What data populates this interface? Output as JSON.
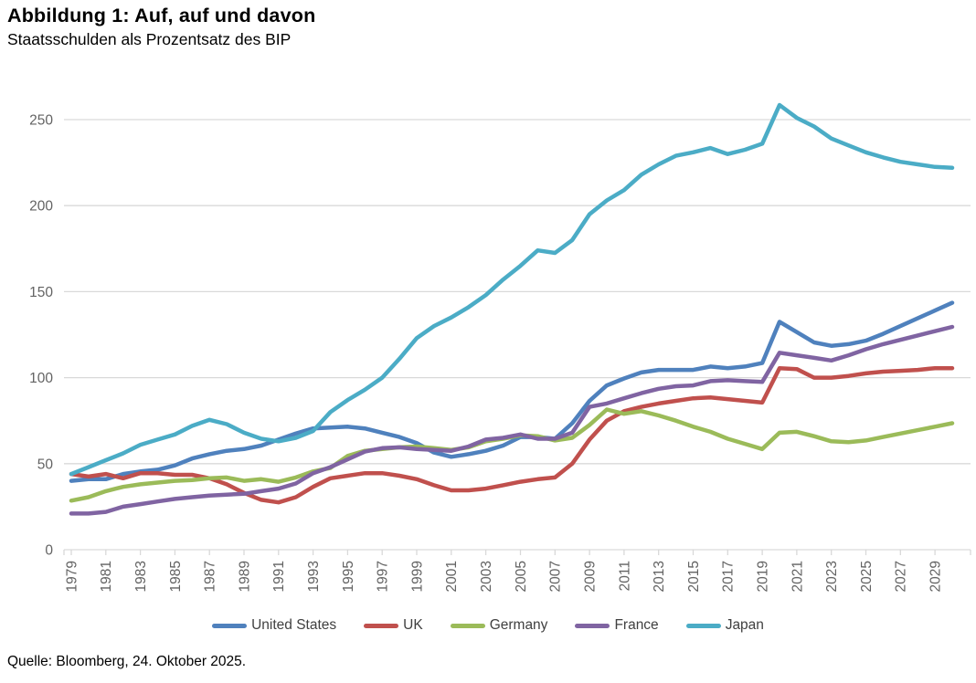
{
  "header": {
    "title": "Abbildung 1: Auf, auf und davon",
    "subtitle": "Staatsschulden als Prozentsatz des BIP"
  },
  "footer": {
    "source": "Quelle: Bloomberg, 24. Oktober 2025."
  },
  "colors": {
    "grid": "#d9d9d9",
    "axis_text": "#636363",
    "legend_text": "#404040",
    "us_blue": "#4F81BD",
    "uk_red": "#C0504D",
    "germany_green": "#9BBB59",
    "france_purple": "#8064A2",
    "japan_cyan": "#4BACC6"
  },
  "chart_data": {
    "type": "line",
    "title": "Abbildung 1: Auf, auf und davon",
    "subtitle": "Staatsschulden als Prozentsatz des BIP",
    "xlabel": "",
    "ylabel": "",
    "ylim": [
      0,
      250
    ],
    "y_ticks": [
      0,
      50,
      100,
      150,
      200,
      250
    ],
    "grid": "horizontal",
    "legend_position": "bottom",
    "x": [
      1979,
      1980,
      1981,
      1982,
      1983,
      1984,
      1985,
      1986,
      1987,
      1988,
      1989,
      1990,
      1991,
      1992,
      1993,
      1994,
      1995,
      1996,
      1997,
      1998,
      1999,
      2000,
      2001,
      2002,
      2003,
      2004,
      2005,
      2006,
      2007,
      2008,
      2009,
      2010,
      2011,
      2012,
      2013,
      2014,
      2015,
      2016,
      2017,
      2018,
      2019,
      2020,
      2021,
      2022,
      2023,
      2024,
      2025,
      2026,
      2027,
      2028,
      2029,
      2030
    ],
    "x_tick_labels": [
      "1979",
      "1981",
      "1983",
      "1985",
      "1987",
      "1989",
      "1991",
      "1993",
      "1995",
      "1997",
      "1999",
      "2001",
      "2003",
      "2005",
      "2007",
      "2009",
      "2011",
      "2013",
      "2015",
      "2017",
      "2019",
      "2021",
      "2023",
      "2025",
      "2027",
      "2029"
    ],
    "series": [
      {
        "name": "United States",
        "color": "#4F81BD",
        "values": [
          40,
          41,
          41,
          44,
          45.5,
          46.5,
          49,
          53,
          55.5,
          57.5,
          58.5,
          60.5,
          64,
          67.5,
          70.5,
          71,
          71.5,
          70.5,
          68,
          65.5,
          62,
          56.5,
          54,
          55.5,
          57.5,
          60.5,
          65.5,
          65.5,
          64.5,
          73.5,
          86.5,
          95.5,
          99.5,
          103,
          104.5,
          104.5,
          104.5,
          106.5,
          105.5,
          106.5,
          108.5,
          132.5,
          126.5,
          120.5,
          118.5,
          119.5,
          121.5,
          125.5,
          130,
          134.5,
          139,
          143.5
        ]
      },
      {
        "name": "UK",
        "color": "#C0504D",
        "values": [
          44,
          42.5,
          44,
          41.5,
          44.5,
          44.5,
          43.5,
          43.5,
          41.5,
          38,
          33,
          29,
          27.5,
          30.5,
          36.5,
          41.5,
          43,
          44.5,
          44.5,
          43,
          41,
          37.5,
          34.5,
          34.5,
          35.5,
          37.5,
          39.5,
          41,
          42,
          50,
          64,
          75,
          80.5,
          83,
          85,
          86.5,
          88,
          88.5,
          87.5,
          86.5,
          85.5,
          105.5,
          105,
          100,
          100,
          101,
          102.5,
          103.5,
          104,
          104.5,
          105.5,
          105.5
        ]
      },
      {
        "name": "Germany",
        "color": "#9BBB59",
        "values": [
          28.5,
          30.5,
          34,
          36.5,
          38,
          39,
          40,
          40.5,
          41.5,
          42,
          40,
          41,
          39.5,
          42,
          45.5,
          47.5,
          54.5,
          57.5,
          58.5,
          59.5,
          60,
          59,
          58,
          59.5,
          63,
          64.5,
          66.5,
          66,
          63.5,
          65,
          72.5,
          81.5,
          79,
          80.5,
          78,
          75,
          71.5,
          68.5,
          64.5,
          61.5,
          58.5,
          68,
          68.5,
          66,
          63,
          62.5,
          63.5,
          65.5,
          67.5,
          69.5,
          71.5,
          73.5
        ]
      },
      {
        "name": "France",
        "color": "#8064A2",
        "values": [
          21,
          21,
          22,
          25,
          26.5,
          28,
          29.5,
          30.5,
          31.5,
          32,
          32.5,
          34,
          35.5,
          38.5,
          44.5,
          48,
          52.5,
          57,
          59,
          59.5,
          58.5,
          58,
          57.5,
          60,
          64,
          65,
          67,
          64.5,
          64.5,
          68,
          83,
          85,
          88,
          91,
          93.5,
          95,
          95.5,
          98,
          98.5,
          98,
          97.5,
          114.5,
          113,
          111.5,
          110,
          113,
          116.5,
          119.5,
          122,
          124.5,
          127,
          129.5
        ]
      },
      {
        "name": "Japan",
        "color": "#4BACC6",
        "values": [
          44,
          48,
          52,
          56,
          61,
          64,
          67,
          72,
          75.5,
          73,
          68,
          64.5,
          63,
          65,
          69,
          80,
          87,
          93,
          100,
          111,
          123,
          130,
          135,
          141,
          148,
          157,
          165,
          174,
          172.5,
          180,
          195,
          203,
          209,
          218,
          224,
          229,
          231,
          233.5,
          230,
          232.5,
          236,
          258.5,
          251,
          246,
          239,
          235,
          231,
          228,
          225.5,
          224,
          222.5,
          222
        ]
      }
    ]
  }
}
